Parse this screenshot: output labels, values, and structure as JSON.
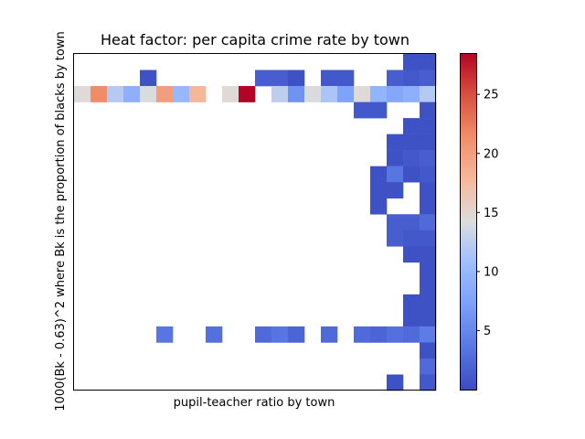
{
  "chart_data": {
    "type": "heatmap",
    "title": "Heat factor: per capita crime rate by town",
    "xlabel": "pupil-teacher ratio by town",
    "ylabel": "1000(Bk - 0.63)^2 where Bk is the proportion of blacks by town",
    "x_ticks_shown": false,
    "y_ticks_shown": false,
    "grid": false,
    "n_cols": 22,
    "n_rows": 21,
    "colormap": "coolwarm",
    "colorbar": {
      "min": 0,
      "max": 28.5,
      "ticks": [
        5,
        10,
        15,
        20,
        25
      ]
    },
    "cells": [
      {
        "col": 20,
        "row": 0,
        "value": 0.5
      },
      {
        "col": 21,
        "row": 0,
        "value": 0.5
      },
      {
        "col": 4,
        "row": 1,
        "value": 0.5
      },
      {
        "col": 11,
        "row": 1,
        "value": 1.5
      },
      {
        "col": 12,
        "row": 1,
        "value": 1.5
      },
      {
        "col": 13,
        "row": 1,
        "value": 0.5
      },
      {
        "col": 15,
        "row": 1,
        "value": 1.0
      },
      {
        "col": 16,
        "row": 1,
        "value": 1.0
      },
      {
        "col": 19,
        "row": 1,
        "value": 1.5
      },
      {
        "col": 20,
        "row": 1,
        "value": 1.0
      },
      {
        "col": 21,
        "row": 1,
        "value": 1.5
      },
      {
        "col": 0,
        "row": 2,
        "value": 14.5
      },
      {
        "col": 1,
        "row": 2,
        "value": 21.5
      },
      {
        "col": 2,
        "row": 2,
        "value": 12.0
      },
      {
        "col": 3,
        "row": 2,
        "value": 9.0
      },
      {
        "col": 4,
        "row": 2,
        "value": 14.0
      },
      {
        "col": 5,
        "row": 2,
        "value": 20.0
      },
      {
        "col": 6,
        "row": 2,
        "value": 10.0
      },
      {
        "col": 7,
        "row": 2,
        "value": 18.0
      },
      {
        "col": 9,
        "row": 2,
        "value": 14.5
      },
      {
        "col": 10,
        "row": 2,
        "value": 28.5
      },
      {
        "col": 12,
        "row": 2,
        "value": 12.5
      },
      {
        "col": 13,
        "row": 2,
        "value": 6.0
      },
      {
        "col": 14,
        "row": 2,
        "value": 14.0
      },
      {
        "col": 15,
        "row": 2,
        "value": 11.5
      },
      {
        "col": 16,
        "row": 2,
        "value": 7.5
      },
      {
        "col": 17,
        "row": 2,
        "value": 14.5
      },
      {
        "col": 18,
        "row": 2,
        "value": 9.5
      },
      {
        "col": 19,
        "row": 2,
        "value": 8.0
      },
      {
        "col": 20,
        "row": 2,
        "value": 9.0
      },
      {
        "col": 21,
        "row": 2,
        "value": 12.0
      },
      {
        "col": 17,
        "row": 3,
        "value": 1.0
      },
      {
        "col": 18,
        "row": 3,
        "value": 1.0
      },
      {
        "col": 21,
        "row": 3,
        "value": 0.5
      },
      {
        "col": 20,
        "row": 4,
        "value": 0.5
      },
      {
        "col": 21,
        "row": 4,
        "value": 0.5
      },
      {
        "col": 19,
        "row": 5,
        "value": 0.5
      },
      {
        "col": 20,
        "row": 5,
        "value": 0.5
      },
      {
        "col": 21,
        "row": 5,
        "value": 0.5
      },
      {
        "col": 19,
        "row": 6,
        "value": 0.5
      },
      {
        "col": 20,
        "row": 6,
        "value": 1.0
      },
      {
        "col": 21,
        "row": 6,
        "value": 1.5
      },
      {
        "col": 18,
        "row": 7,
        "value": 0.5
      },
      {
        "col": 19,
        "row": 7,
        "value": 3.5
      },
      {
        "col": 20,
        "row": 7,
        "value": 0.5
      },
      {
        "col": 21,
        "row": 7,
        "value": 1.0
      },
      {
        "col": 18,
        "row": 8,
        "value": 0.5
      },
      {
        "col": 19,
        "row": 8,
        "value": 0.5
      },
      {
        "col": 21,
        "row": 8,
        "value": 0.5
      },
      {
        "col": 18,
        "row": 9,
        "value": 0.5
      },
      {
        "col": 21,
        "row": 9,
        "value": 0.5
      },
      {
        "col": 19,
        "row": 10,
        "value": 1.5
      },
      {
        "col": 20,
        "row": 10,
        "value": 1.5
      },
      {
        "col": 21,
        "row": 10,
        "value": 2.5
      },
      {
        "col": 19,
        "row": 11,
        "value": 1.5
      },
      {
        "col": 20,
        "row": 11,
        "value": 1.0
      },
      {
        "col": 21,
        "row": 11,
        "value": 1.0
      },
      {
        "col": 20,
        "row": 12,
        "value": 0.5
      },
      {
        "col": 21,
        "row": 12,
        "value": 0.5
      },
      {
        "col": 21,
        "row": 13,
        "value": 0.5
      },
      {
        "col": 21,
        "row": 14,
        "value": 0.5
      },
      {
        "col": 20,
        "row": 15,
        "value": 0.5
      },
      {
        "col": 21,
        "row": 15,
        "value": 0.5
      },
      {
        "col": 20,
        "row": 16,
        "value": 0.5
      },
      {
        "col": 21,
        "row": 16,
        "value": 0.5
      },
      {
        "col": 5,
        "row": 17,
        "value": 3.5
      },
      {
        "col": 8,
        "row": 17,
        "value": 3.0
      },
      {
        "col": 11,
        "row": 17,
        "value": 2.5
      },
      {
        "col": 12,
        "row": 17,
        "value": 3.5
      },
      {
        "col": 13,
        "row": 17,
        "value": 2.0
      },
      {
        "col": 15,
        "row": 17,
        "value": 2.5
      },
      {
        "col": 17,
        "row": 17,
        "value": 2.5
      },
      {
        "col": 18,
        "row": 17,
        "value": 2.0
      },
      {
        "col": 19,
        "row": 17,
        "value": 3.0
      },
      {
        "col": 20,
        "row": 17,
        "value": 2.5
      },
      {
        "col": 21,
        "row": 17,
        "value": 4.0
      },
      {
        "col": 21,
        "row": 18,
        "value": 0.5
      },
      {
        "col": 21,
        "row": 19,
        "value": 2.5
      },
      {
        "col": 19,
        "row": 20,
        "value": 0.5
      },
      {
        "col": 21,
        "row": 20,
        "value": 1.0
      }
    ]
  }
}
